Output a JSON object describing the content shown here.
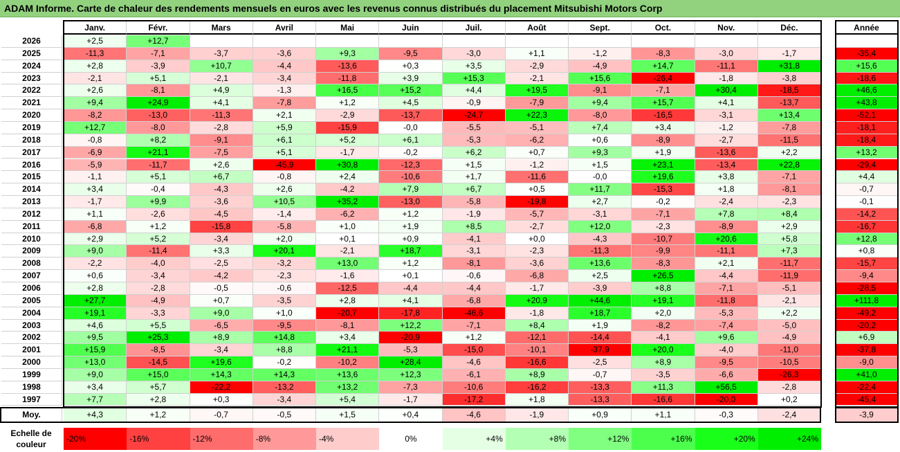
{
  "title": "ADAM Informe. Carte de chaleur des rendements mensuels en euros avec les revenus connus distribués du placement Mitsubishi Motors Corp",
  "legend": {
    "label_line1": "Echelle de",
    "label_line2": "couleur",
    "stops": [
      {
        "label": "-20%",
        "value": -20,
        "color": "#ff0000"
      },
      {
        "label": "-16%",
        "value": -16,
        "color": "#ff4141"
      },
      {
        "label": "-12%",
        "value": -12,
        "color": "#ff6c6c"
      },
      {
        "label": "-8%",
        "value": -8,
        "color": "#ff9999"
      },
      {
        "label": "-4%",
        "value": -4,
        "color": "#ffcccc"
      },
      {
        "label": "0%",
        "value": 0,
        "color": "#ffffff"
      },
      {
        "label": "+4%",
        "value": 4,
        "color": "#e5ffe5"
      },
      {
        "label": "+8%",
        "value": 8,
        "color": "#b3ffb3"
      },
      {
        "label": "+12%",
        "value": 12,
        "color": "#80ff80"
      },
      {
        "label": "+16%",
        "value": 16,
        "color": "#4dff4d"
      },
      {
        "label": "+20%",
        "value": 20,
        "color": "#1aff1a"
      },
      {
        "label": "+24%",
        "value": 24,
        "color": "#00ee00"
      }
    ]
  },
  "chart_data": {
    "type": "heatmap",
    "title": "ADAM Informe. Carte de chaleur des rendements mensuels en euros avec les revenus connus distribués du placement Mitsubishi Motors Corp",
    "columns": [
      "Janv.",
      "Févr.",
      "Mars",
      "Avril",
      "Mai",
      "Juin",
      "Juil.",
      "Août",
      "Sept.",
      "Oct.",
      "Nov.",
      "Déc."
    ],
    "year_column": "Année",
    "avg_label": "Moy.",
    "rows": [
      {
        "year": "2026",
        "months": [
          "+2,5",
          "+12,7",
          "",
          "",
          "",
          "",
          "",
          "",
          "",
          "",
          "",
          ""
        ],
        "annual": ""
      },
      {
        "year": "2025",
        "months": [
          "-11,3",
          "-7,1",
          "-3,7",
          "-3,6",
          "+9,3",
          "-9,5",
          "-3,0",
          "+1,1",
          "-1,2",
          "-8,3",
          "-3,0",
          "-1,7"
        ],
        "annual": "-35,4"
      },
      {
        "year": "2024",
        "months": [
          "+2,8",
          "-3,9",
          "+10,7",
          "-4,4",
          "-13,6",
          "+0,3",
          "+3,5",
          "-2,9",
          "-4,9",
          "+14,7",
          "-11,1",
          "+31,8"
        ],
        "annual": "+15,6"
      },
      {
        "year": "2023",
        "months": [
          "-2,1",
          "+5,1",
          "-2,1",
          "-3,4",
          "-11,8",
          "+3,9",
          "+15,3",
          "-2,1",
          "+15,6",
          "-26,4",
          "-1,8",
          "-3,8"
        ],
        "annual": "-18,6"
      },
      {
        "year": "2022",
        "months": [
          "+2,6",
          "-8,1",
          "+4,9",
          "-1,3",
          "+16,5",
          "+15,2",
          "+4,4",
          "+19,5",
          "-9,1",
          "-7,1",
          "+30,4",
          "-18,5"
        ],
        "annual": "+46,6"
      },
      {
        "year": "2021",
        "months": [
          "+9,4",
          "+24,9",
          "+4,1",
          "-7,8",
          "+1,2",
          "+4,5",
          "-0,9",
          "-7,9",
          "+9,4",
          "+15,7",
          "+4,1",
          "-13,7"
        ],
        "annual": "+43,8"
      },
      {
        "year": "2020",
        "months": [
          "-8,2",
          "-13,0",
          "-11,3",
          "+2,1",
          "-2,9",
          "-13,7",
          "-24,7",
          "+22,3",
          "-8,0",
          "-16,5",
          "-3,1",
          "+13,4"
        ],
        "annual": "-52,1"
      },
      {
        "year": "2019",
        "months": [
          "+12,7",
          "-8,0",
          "-2,8",
          "+5,9",
          "-15,9",
          "-0,0",
          "-5,5",
          "-5,1",
          "+7,4",
          "+3,4",
          "-1,2",
          "-7,8"
        ],
        "annual": "-18,1"
      },
      {
        "year": "2018",
        "months": [
          "-0,8",
          "+8,2",
          "-9,1",
          "+6,1",
          "+5,2",
          "+6,1",
          "-5,3",
          "-6,2",
          "+0,6",
          "-8,9",
          "-2,7",
          "-11,5"
        ],
        "annual": "-18,4"
      },
      {
        "year": "2017",
        "months": [
          "-6,9",
          "+21,1",
          "-7,5",
          "+5,1",
          "-1,7",
          "-0,2",
          "+6,2",
          "+0,7",
          "+9,3",
          "+1,9",
          "-13,6",
          "+2,2"
        ],
        "annual": "+13,2"
      },
      {
        "year": "2016",
        "months": [
          "-5,9",
          "-11,7",
          "+2,6",
          "-45,9",
          "+30,8",
          "-12,3",
          "+1,5",
          "-1,2",
          "+1,5",
          "+23,1",
          "-13,4",
          "+22,8"
        ],
        "annual": "-29,4"
      },
      {
        "year": "2015",
        "months": [
          "-1,1",
          "+5,1",
          "+6,7",
          "-0,8",
          "+2,4",
          "-10,6",
          "+1,7",
          "-11,6",
          "-0,0",
          "+19,6",
          "+3,8",
          "-7,1"
        ],
        "annual": "+4,4"
      },
      {
        "year": "2014",
        "months": [
          "+3,4",
          "-0,4",
          "-4,3",
          "+2,6",
          "-4,2",
          "+7,9",
          "+6,7",
          "+0,5",
          "+11,7",
          "-15,3",
          "+1,8",
          "-8,1"
        ],
        "annual": "-0,7"
      },
      {
        "year": "2013",
        "months": [
          "-1,7",
          "+9,9",
          "-3,6",
          "+10,5",
          "+35,2",
          "-13,0",
          "-5,8",
          "-19,8",
          "+2,7",
          "-0,2",
          "-2,4",
          "-2,3"
        ],
        "annual": "-0,1"
      },
      {
        "year": "2012",
        "months": [
          "+1,1",
          "-2,6",
          "-4,5",
          "-1,4",
          "-6,2",
          "+1,2",
          "-1,9",
          "-5,7",
          "-3,1",
          "-7,1",
          "+7,8",
          "+8,4"
        ],
        "annual": "-14,2"
      },
      {
        "year": "2011",
        "months": [
          "-6,8",
          "+1,2",
          "-15,8",
          "-5,8",
          "+1,0",
          "+1,9",
          "+8,5",
          "-2,7",
          "+12,0",
          "-2,3",
          "-8,9",
          "+2,9"
        ],
        "annual": "-16,7"
      },
      {
        "year": "2010",
        "months": [
          "+2,9",
          "+5,2",
          "-3,4",
          "+2,0",
          "+0,1",
          "+0,9",
          "-4,1",
          "+0,0",
          "-4,3",
          "-10,7",
          "+20,6",
          "+5,8"
        ],
        "annual": "+12,8"
      },
      {
        "year": "2009",
        "months": [
          "+9,0",
          "-11,4",
          "+3,3",
          "+20,1",
          "-2,1",
          "+18,7",
          "-3,1",
          "-2,3",
          "-11,3",
          "-9,9",
          "-11,1",
          "+7,3"
        ],
        "annual": "+0,8"
      },
      {
        "year": "2008",
        "months": [
          "-2,2",
          "-4,0",
          "-2,5",
          "-3,2",
          "+13,0",
          "+1,2",
          "-8,1",
          "-3,6",
          "+13,6",
          "-8,3",
          "+2,1",
          "-11,7"
        ],
        "annual": "-15,7"
      },
      {
        "year": "2007",
        "months": [
          "+0,6",
          "-3,4",
          "-4,2",
          "-2,3",
          "-1,6",
          "+0,1",
          "-0,6",
          "-6,8",
          "+2,5",
          "+26,5",
          "-4,4",
          "-11,9"
        ],
        "annual": "-9,4"
      },
      {
        "year": "2006",
        "months": [
          "+2,8",
          "-2,8",
          "-0,5",
          "-0,6",
          "-12,5",
          "-4,4",
          "-4,4",
          "-1,7",
          "-3,9",
          "+8,8",
          "-7,1",
          "-5,1"
        ],
        "annual": "-28,5"
      },
      {
        "year": "2005",
        "months": [
          "+27,7",
          "-4,9",
          "+0,7",
          "-3,5",
          "+2,8",
          "+4,1",
          "-6,8",
          "+20,9",
          "+44,6",
          "+19,1",
          "-11,8",
          "-2,1"
        ],
        "annual": "+111,8"
      },
      {
        "year": "2004",
        "months": [
          "+19,1",
          "-3,3",
          "+9,0",
          "+1,0",
          "-20,7",
          "-17,8",
          "-46,6",
          "-1,8",
          "+18,7",
          "+2,0",
          "-5,3",
          "+2,2"
        ],
        "annual": "-49,2"
      },
      {
        "year": "2003",
        "months": [
          "+4,6",
          "+5,5",
          "-6,5",
          "-9,5",
          "-8,1",
          "+12,2",
          "-7,1",
          "+8,4",
          "+1,9",
          "-8,2",
          "-7,4",
          "-5,0"
        ],
        "annual": "-20,2"
      },
      {
        "year": "2002",
        "months": [
          "+9,5",
          "+25,3",
          "+8,9",
          "+14,8",
          "+3,4",
          "-20,9",
          "+1,2",
          "-12,1",
          "-14,4",
          "-4,1",
          "+9,6",
          "-4,9"
        ],
        "annual": "+6,9"
      },
      {
        "year": "2001",
        "months": [
          "+15,9",
          "-8,5",
          "-3,4",
          "+8,8",
          "+21,1",
          "-5,3",
          "-15,0",
          "-10,1",
          "-37,9",
          "+20,0",
          "-4,0",
          "-11,0"
        ],
        "annual": "-37,8"
      },
      {
        "year": "2000",
        "months": [
          "+13,0",
          "-14,5",
          "+19,6",
          "-0,2",
          "-10,2",
          "+28,4",
          "-4,6",
          "-16,6",
          "-2,5",
          "+8,9",
          "-9,5",
          "-10,5"
        ],
        "annual": "-9,0"
      },
      {
        "year": "1999",
        "months": [
          "+9,0",
          "+15,0",
          "+14,3",
          "+14,3",
          "+13,6",
          "+12,3",
          "-6,1",
          "+8,9",
          "-0,7",
          "-3,5",
          "-6,6",
          "-26,3"
        ],
        "annual": "+41,0"
      },
      {
        "year": "1998",
        "months": [
          "+3,4",
          "+5,7",
          "-22,2",
          "-13,2",
          "+13,2",
          "-7,3",
          "-10,6",
          "-16,2",
          "-13,3",
          "+11,3",
          "+56,5",
          "-2,8"
        ],
        "annual": "-22,4"
      },
      {
        "year": "1997",
        "months": [
          "+7,7",
          "+2,8",
          "+0,3",
          "-3,4",
          "+5,4",
          "-1,7",
          "-17,2",
          "+1,8",
          "-13,3",
          "-16,6",
          "-20,0",
          "+0,2"
        ],
        "annual": "-45,4"
      }
    ],
    "averages": {
      "months": [
        "+4,3",
        "+1,2",
        "-0,7",
        "-0,5",
        "+1,5",
        "+0,4",
        "-4,6",
        "-1,9",
        "+0,9",
        "+1,1",
        "-0,3",
        "-2,4"
      ],
      "annual": "-3,9"
    }
  }
}
